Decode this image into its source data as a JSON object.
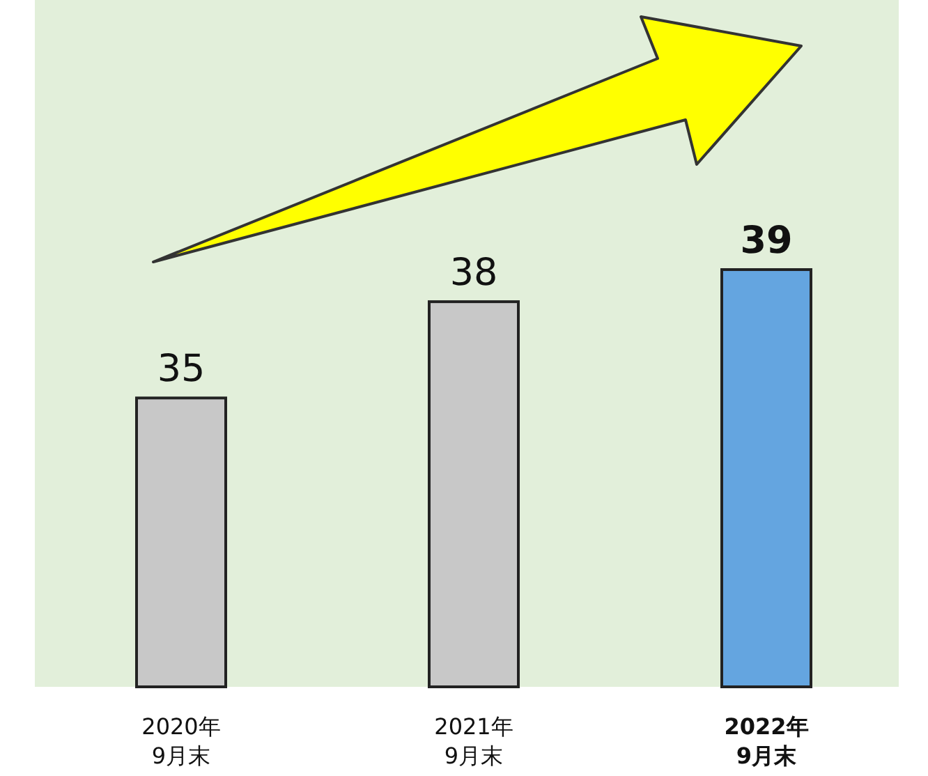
{
  "chart_data": {
    "type": "bar",
    "categories": [
      "2020年\n9月末",
      "2021年\n9月末",
      "2022年\n9月末"
    ],
    "values": [
      35,
      38,
      39
    ],
    "colors": [
      "#c8c8c8",
      "#c8c8c8",
      "#64a5e0"
    ],
    "ylim": [
      26,
      47.4
    ],
    "data_labels": true
  }
}
